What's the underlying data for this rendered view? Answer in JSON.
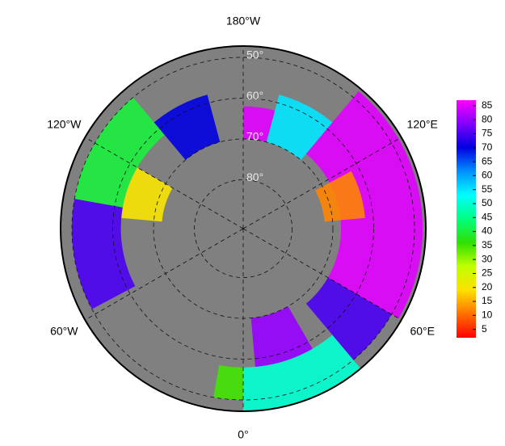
{
  "chart_data": {
    "type": "polar-map",
    "lon_labels": [
      {
        "value": 180,
        "label": "180°W"
      },
      {
        "value": -120,
        "label": "120°W"
      },
      {
        "value": 120,
        "label": "120°E"
      },
      {
        "value": -60,
        "label": "60°W"
      },
      {
        "value": 60,
        "label": "60°E"
      },
      {
        "value": 0,
        "label": "0°"
      }
    ],
    "lat_labels": [
      {
        "value": 50,
        "label": "50°"
      },
      {
        "value": 60,
        "label": "60°"
      },
      {
        "value": 70,
        "label": "70°"
      },
      {
        "value": 80,
        "label": "80°"
      }
    ],
    "background": "#808080",
    "colorbar": {
      "clim": [
        2,
        87
      ],
      "ticks": [
        5,
        10,
        15,
        20,
        25,
        30,
        35,
        40,
        45,
        50,
        55,
        60,
        65,
        70,
        75,
        80,
        85
      ],
      "colors": [
        "#ff0000",
        "#ff7000",
        "#ffe000",
        "#c0ff00",
        "#30e000",
        "#00ff80",
        "#00ffff",
        "#0090ff",
        "#0000e0",
        "#8000ff",
        "#ff00ff"
      ]
    },
    "cells": [
      {
        "lon": [
          60,
          140
        ],
        "lat": [
          48,
          68
        ],
        "value": 85
      },
      {
        "lon": [
          95,
          118
        ],
        "lat": [
          62,
          72
        ],
        "value": 12
      },
      {
        "lon": [
          0,
          40
        ],
        "lat": [
          46,
          58
        ],
        "value": 50
      },
      {
        "lon": [
          5,
          30
        ],
        "lat": [
          58,
          70
        ],
        "value": 80
      },
      {
        "lon": [
          40,
          60
        ],
        "lat": [
          50,
          68
        ],
        "value": 75
      },
      {
        "lon": [
          -140,
          -100
        ],
        "lat": [
          50,
          62
        ],
        "value": 40
      },
      {
        "lon": [
          -100,
          -62
        ],
        "lat": [
          50,
          62
        ],
        "value": 75
      },
      {
        "lon": [
          -165,
          -140
        ],
        "lat": [
          58,
          70
        ],
        "value": 70
      },
      {
        "lon": [
          140,
          165
        ],
        "lat": [
          58,
          70
        ],
        "value": 55
      },
      {
        "lon": [
          165,
          180
        ],
        "lat": [
          62,
          70
        ],
        "value": 85
      },
      {
        "lon": [
          -10,
          0
        ],
        "lat": [
          50,
          58
        ],
        "value": 35
      },
      {
        "lon": [
          -120,
          -95
        ],
        "lat": [
          62,
          72
        ],
        "value": 20
      }
    ]
  }
}
